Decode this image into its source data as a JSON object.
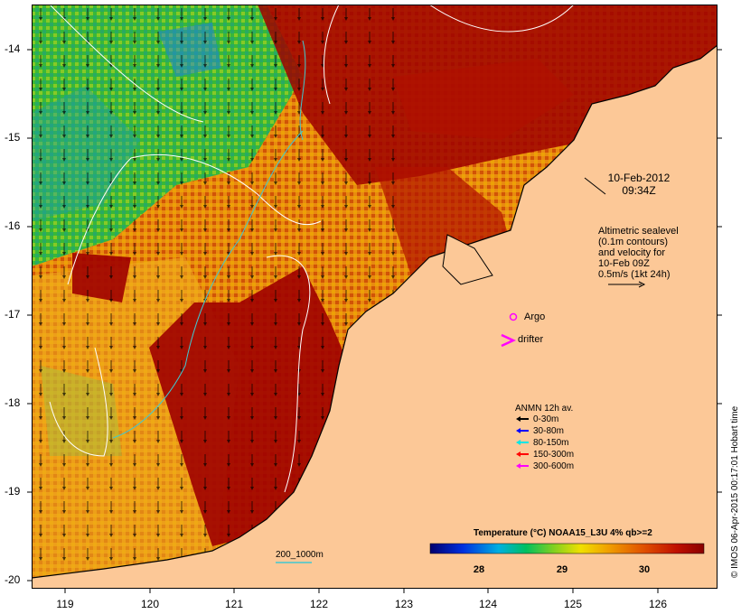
{
  "map": {
    "datetime_line1": "10-Feb-2012",
    "datetime_line2": "09:34Z",
    "altimetry_lines": [
      "Altimetric sealevel",
      "(0.1m contours)",
      "and velocity for",
      "10-Feb 09Z",
      "0.5m/s (1kt 24h)"
    ],
    "markers": {
      "argo": "Argo",
      "drifter": "drifter"
    },
    "anmn": {
      "title": "ANMN 12h av.",
      "entries": [
        {
          "label": "0-30m",
          "color": "#000000"
        },
        {
          "label": "30-80m",
          "color": "#0000ff"
        },
        {
          "label": "80-150m",
          "color": "#00e5e5"
        },
        {
          "label": "150-300m",
          "color": "#ff0000"
        },
        {
          "label": "300-600m",
          "color": "#ff00ff"
        }
      ]
    },
    "bathymetry_label": "200_1000m",
    "colorbar": {
      "title": "Temperature (°C) NOAA15_L3U 4% qb>=2",
      "ticks": [
        "28",
        "29",
        "30"
      ]
    },
    "credit": "© IMOS 06-Apr-2015 00:17:01 Hobart time",
    "y_ticks": [
      "-14",
      "-15",
      "-16",
      "-17",
      "-18",
      "-19",
      "-20"
    ],
    "x_ticks": [
      "119",
      "120",
      "121",
      "122",
      "123",
      "124",
      "125",
      "126"
    ],
    "colors": {
      "land": "#fcc897",
      "hot": "#9e0000",
      "warm": "#e07000",
      "mid": "#f0c000",
      "cool": "#40c040"
    }
  }
}
